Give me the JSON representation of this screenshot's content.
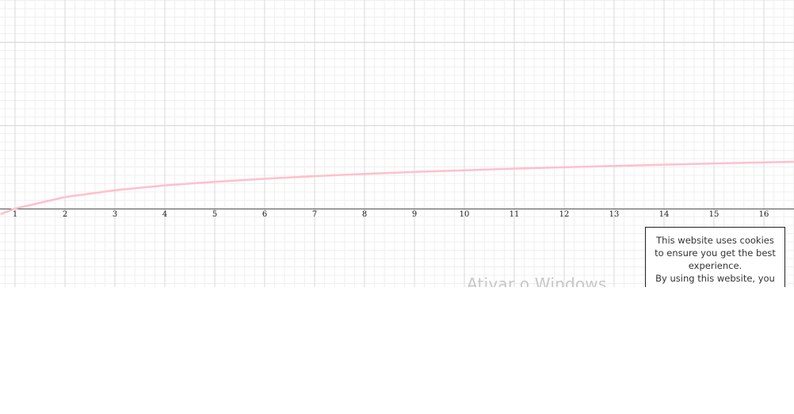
{
  "colors": {
    "curve": "#ffc0cb",
    "axis": "#555555",
    "major_grid": "#d9d9d9",
    "minor_grid": "#efefef",
    "watermark": "#c8c8c8"
  },
  "chart_data": {
    "type": "line",
    "title": "",
    "xlabel": "",
    "ylabel": "",
    "x_ticks": [
      "1",
      "2",
      "3",
      "4",
      "5",
      "6",
      "7",
      "8",
      "9",
      "10",
      "11",
      "12",
      "13",
      "14",
      "15",
      "16"
    ],
    "xlim": [
      0.71,
      16.6
    ],
    "grid": true,
    "series": [
      {
        "points": [
          [
            0.71,
            -0.34
          ],
          [
            1,
            0
          ],
          [
            2,
            0.69
          ],
          [
            3,
            1.1
          ],
          [
            4,
            1.39
          ],
          [
            5,
            1.61
          ],
          [
            6,
            1.79
          ],
          [
            7,
            1.95
          ],
          [
            8,
            2.08
          ],
          [
            9,
            2.2
          ],
          [
            10,
            2.3
          ],
          [
            11,
            2.4
          ],
          [
            12,
            2.48
          ],
          [
            13,
            2.56
          ],
          [
            14,
            2.64
          ],
          [
            15,
            2.71
          ],
          [
            16,
            2.77
          ],
          [
            16.6,
            2.81
          ]
        ]
      }
    ]
  },
  "overlay": {
    "watermark_text": "Ativar o Windows",
    "cookie_banner": {
      "line1": "This website uses cookies to ensure you get the best experience.",
      "line2": "By using this website, you"
    }
  }
}
